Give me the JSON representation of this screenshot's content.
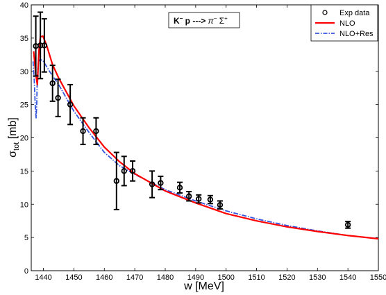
{
  "chart_data": {
    "type": "line",
    "title": "",
    "xlabel": "w [MeV]",
    "ylabel_main": "σ",
    "ylabel_sub": "tot",
    "ylabel_unit": " [mb]",
    "xlim": [
      1436,
      1550
    ],
    "ylim": [
      0,
      40
    ],
    "x_ticks": [
      1440,
      1450,
      1460,
      1470,
      1480,
      1490,
      1500,
      1510,
      1520,
      1530,
      1540,
      1550
    ],
    "y_ticks": [
      0,
      5,
      10,
      15,
      20,
      25,
      30,
      35,
      40
    ],
    "grid": false,
    "legend_position": "top-right",
    "annotation": {
      "k": "K",
      "k_sup": "−",
      "p_arrow": " p ---> ",
      "pi": "π",
      "pi_sup": "−",
      "sigma": " Σ",
      "sigma_sup": "+"
    },
    "series": [
      {
        "name": "Exp data",
        "kind": "errorbar",
        "color": "#000000",
        "points": [
          {
            "x": 1437.5,
            "y": 33.8,
            "err": 4.5
          },
          {
            "x": 1439.0,
            "y": 33.9,
            "err": 5.0
          },
          {
            "x": 1440.3,
            "y": 33.9,
            "err": 4.0
          },
          {
            "x": 1443.0,
            "y": 28.2,
            "err": 2.7
          },
          {
            "x": 1444.8,
            "y": 26.0,
            "err": 2.8
          },
          {
            "x": 1448.8,
            "y": 25.0,
            "err": 3.0
          },
          {
            "x": 1453.0,
            "y": 21.0,
            "err": 2.0
          },
          {
            "x": 1457.3,
            "y": 21.0,
            "err": 2.0
          },
          {
            "x": 1464.0,
            "y": 13.5,
            "err": 4.3
          },
          {
            "x": 1466.5,
            "y": 15.0,
            "err": 2.2
          },
          {
            "x": 1469.3,
            "y": 15.0,
            "err": 1.5
          },
          {
            "x": 1475.7,
            "y": 13.0,
            "err": 2.0
          },
          {
            "x": 1478.5,
            "y": 13.2,
            "err": 1.0
          },
          {
            "x": 1484.8,
            "y": 12.5,
            "err": 0.8
          },
          {
            "x": 1487.8,
            "y": 11.2,
            "err": 0.7
          },
          {
            "x": 1491.0,
            "y": 10.8,
            "err": 0.6
          },
          {
            "x": 1494.8,
            "y": 10.7,
            "err": 0.6
          },
          {
            "x": 1498.0,
            "y": 9.9,
            "err": 0.6
          },
          {
            "x": 1540.0,
            "y": 6.9,
            "err": 0.5
          }
        ]
      },
      {
        "name": "NLO",
        "kind": "line",
        "color": "#ff0000",
        "style": "solid",
        "x": [
          1436.8,
          1437.5,
          1438.0,
          1438.5,
          1439.0,
          1439.8,
          1441,
          1443,
          1445,
          1450,
          1455,
          1460,
          1465,
          1470,
          1480,
          1490,
          1500,
          1510,
          1520,
          1530,
          1540,
          1550
        ],
        "y": [
          33.0,
          29.5,
          28.0,
          33.0,
          35.2,
          35.3,
          34.0,
          31.0,
          29.0,
          24.8,
          21.5,
          18.6,
          16.4,
          14.6,
          12.0,
          10.2,
          8.6,
          7.5,
          6.6,
          5.9,
          5.3,
          4.8
        ]
      },
      {
        "name": "NLO+Res",
        "kind": "line",
        "color": "#3355dd",
        "style": "dashdot",
        "x": [
          1436.6,
          1437.0,
          1437.3,
          1437.6,
          1437.8,
          1438.0,
          1438.4,
          1439.0,
          1440.0,
          1442,
          1445,
          1450,
          1455,
          1460,
          1465,
          1470,
          1480,
          1490,
          1500,
          1510,
          1520,
          1530,
          1540,
          1550
        ],
        "y": [
          31.5,
          28.5,
          25.0,
          23.0,
          25.0,
          29.5,
          31.5,
          31.8,
          31.5,
          30.0,
          28.0,
          24.0,
          20.8,
          17.8,
          15.8,
          14.5,
          12.2,
          10.5,
          9.0,
          7.8,
          6.8,
          6.0,
          5.3,
          4.8
        ]
      }
    ]
  }
}
